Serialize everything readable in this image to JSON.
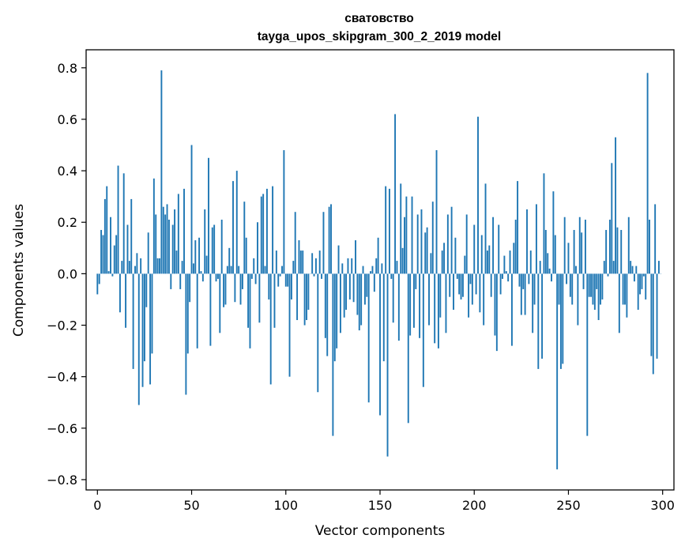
{
  "chart_data": {
    "type": "bar",
    "title": "сватовство",
    "subtitle": "tayga_upos_skipgram_300_2_2019 model",
    "xlabel": "Vector components",
    "ylabel": "Components values",
    "xlim": [
      -6,
      306
    ],
    "ylim": [
      -0.84,
      0.87
    ],
    "xticks": [
      0,
      50,
      100,
      150,
      200,
      250,
      300
    ],
    "xtick_labels": [
      "0",
      "50",
      "100",
      "150",
      "200",
      "250",
      "300"
    ],
    "yticks": [
      -0.8,
      -0.6,
      -0.4,
      -0.2,
      0.0,
      0.2,
      0.4,
      0.6,
      0.8
    ],
    "ytick_labels": [
      "−0.8",
      "−0.6",
      "−0.4",
      "−0.2",
      "0.0",
      "0.2",
      "0.4",
      "0.6",
      "0.8"
    ],
    "grid": false,
    "legend": "none",
    "bar_color": "#1f77b4",
    "x_start": 0,
    "values": [
      -0.08,
      -0.04,
      0.17,
      0.15,
      0.29,
      0.34,
      0.01,
      0.22,
      -0.01,
      0.11,
      0.15,
      0.42,
      -0.15,
      0.05,
      0.39,
      -0.21,
      0.19,
      0.05,
      0.29,
      -0.37,
      0.03,
      0.08,
      -0.51,
      0.06,
      -0.44,
      -0.34,
      -0.13,
      0.16,
      -0.43,
      -0.31,
      0.37,
      0.23,
      0.06,
      0.06,
      0.79,
      0.26,
      0.23,
      0.27,
      0.21,
      -0.06,
      0.19,
      0.25,
      0.09,
      0.31,
      -0.06,
      0.05,
      0.33,
      -0.47,
      -0.31,
      -0.11,
      0.5,
      0.04,
      0.13,
      -0.29,
      0.14,
      0.01,
      -0.03,
      0.25,
      0.07,
      0.45,
      -0.28,
      0.18,
      0.19,
      -0.03,
      -0.02,
      -0.23,
      0.21,
      -0.13,
      -0.12,
      0.03,
      0.1,
      0.03,
      0.36,
      -0.11,
      0.4,
      0.03,
      -0.12,
      -0.06,
      0.28,
      0.14,
      -0.21,
      -0.29,
      -0.02,
      0.06,
      -0.04,
      0.2,
      -0.19,
      0.3,
      0.31,
      0.03,
      0.33,
      -0.1,
      -0.43,
      0.34,
      -0.21,
      0.09,
      -0.05,
      -0.01,
      0.03,
      0.48,
      -0.05,
      -0.05,
      -0.4,
      -0.1,
      0.05,
      0.24,
      -0.18,
      0.13,
      0.09,
      0.09,
      -0.2,
      -0.18,
      -0.14,
      0.0,
      0.08,
      -0.01,
      0.06,
      -0.46,
      0.09,
      -0.02,
      0.24,
      -0.25,
      -0.32,
      0.26,
      0.27,
      -0.63,
      -0.34,
      -0.29,
      0.11,
      -0.23,
      0.04,
      -0.17,
      -0.14,
      0.06,
      -0.1,
      0.06,
      -0.11,
      0.13,
      -0.16,
      -0.22,
      -0.2,
      0.03,
      -0.12,
      -0.09,
      -0.5,
      0.01,
      0.03,
      -0.07,
      0.06,
      0.14,
      -0.55,
      0.04,
      -0.34,
      0.34,
      -0.71,
      0.33,
      -0.02,
      -0.19,
      0.62,
      0.05,
      -0.26,
      0.35,
      0.1,
      0.22,
      0.3,
      -0.58,
      -0.24,
      0.3,
      -0.21,
      -0.06,
      0.23,
      -0.25,
      0.25,
      -0.44,
      0.16,
      0.18,
      -0.2,
      0.08,
      0.28,
      -0.27,
      0.48,
      -0.29,
      -0.17,
      0.09,
      0.12,
      -0.23,
      0.23,
      -0.09,
      0.26,
      -0.14,
      0.14,
      -0.02,
      -0.08,
      -0.1,
      -0.09,
      0.07,
      0.23,
      -0.17,
      -0.04,
      -0.12,
      0.19,
      -0.08,
      0.61,
      -0.15,
      0.15,
      -0.2,
      0.35,
      0.09,
      0.11,
      -0.09,
      0.22,
      -0.24,
      -0.3,
      0.19,
      -0.08,
      -0.02,
      0.07,
      0.01,
      -0.03,
      0.09,
      -0.28,
      0.12,
      0.21,
      0.36,
      -0.05,
      -0.16,
      -0.06,
      -0.16,
      0.25,
      -0.04,
      0.09,
      -0.23,
      -0.12,
      0.27,
      -0.37,
      0.05,
      -0.33,
      0.39,
      0.17,
      0.08,
      0.02,
      -0.03,
      0.32,
      0.15,
      -0.76,
      -0.12,
      -0.37,
      -0.35,
      0.22,
      -0.04,
      0.12,
      -0.09,
      -0.12,
      0.17,
      0.03,
      -0.2,
      0.22,
      0.16,
      -0.06,
      0.21,
      -0.63,
      -0.09,
      -0.09,
      -0.12,
      -0.14,
      -0.06,
      -0.18,
      -0.12,
      -0.1,
      0.05,
      0.17,
      -0.01,
      0.21,
      0.43,
      0.05,
      0.53,
      0.18,
      -0.23,
      0.17,
      -0.12,
      -0.12,
      -0.17,
      0.22,
      0.05,
      0.03,
      -0.03,
      0.03,
      -0.14,
      -0.08,
      -0.06,
      -0.01,
      -0.1,
      0.78,
      0.21,
      -0.32,
      -0.39,
      0.27,
      -0.33,
      0.05,
      0.0
    ]
  }
}
